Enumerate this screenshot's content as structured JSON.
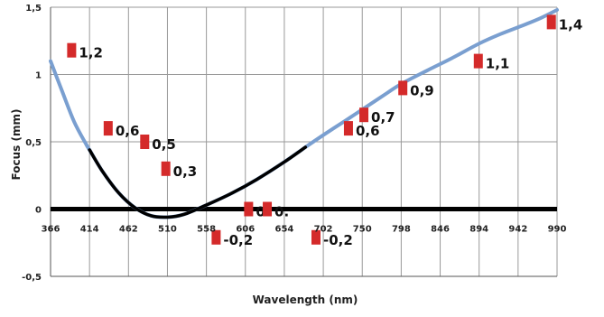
{
  "chart_data": {
    "type": "line",
    "title": "",
    "xlabel": "Wavelength (nm)",
    "ylabel": "Focus (mm)",
    "xlim": [
      366,
      990
    ],
    "ylim": [
      -0.5,
      1.5
    ],
    "x_ticks": [
      {
        "value": 366,
        "label": "366"
      },
      {
        "value": 414,
        "label": "414"
      },
      {
        "value": 462,
        "label": "462"
      },
      {
        "value": 510,
        "label": "510"
      },
      {
        "value": 558,
        "label": "558"
      },
      {
        "value": 606,
        "label": "606"
      },
      {
        "value": 654,
        "label": "654"
      },
      {
        "value": 702,
        "label": "702"
      },
      {
        "value": 750,
        "label": "750"
      },
      {
        "value": 798,
        "label": "798"
      },
      {
        "value": 846,
        "label": "846"
      },
      {
        "value": 894,
        "label": "894"
      },
      {
        "value": 942,
        "label": "942"
      },
      {
        "value": 990,
        "label": "990"
      }
    ],
    "y_ticks": [
      {
        "value": 1.5,
        "label": "1,5"
      },
      {
        "value": 1,
        "label": "1"
      },
      {
        "value": 0.5,
        "label": "0,5"
      },
      {
        "value": 0,
        "label": "0"
      },
      {
        "value": -0.5,
        "label": "-0,5"
      }
    ],
    "grid": true,
    "series": [
      {
        "color": "#7a9fd0",
        "x": [
          366,
          380,
          395,
          410,
          414,
          430,
          450,
          470,
          490,
          510,
          530,
          558,
          590,
          620,
          654,
          680,
          702,
          730,
          750,
          780,
          798,
          830,
          860,
          894,
          920,
          950,
          970,
          990
        ],
        "y": [
          1.1,
          0.88,
          0.65,
          0.48,
          0.44,
          0.28,
          0.12,
          0.01,
          -0.05,
          -0.06,
          -0.04,
          0.03,
          0.12,
          0.22,
          0.35,
          0.46,
          0.55,
          0.66,
          0.74,
          0.86,
          0.93,
          1.03,
          1.12,
          1.23,
          1.3,
          1.37,
          1.42,
          1.48
        ]
      },
      {
        "color": "#000000",
        "x": [
          414,
          430,
          450,
          470,
          490,
          510,
          530,
          558,
          590,
          620,
          654,
          680
        ],
        "y": [
          0.44,
          0.28,
          0.12,
          0.01,
          -0.05,
          -0.06,
          -0.04,
          0.03,
          0.12,
          0.22,
          0.35,
          0.46
        ]
      }
    ],
    "markers": [
      {
        "x": 392,
        "y": 1.18,
        "label": "1,2"
      },
      {
        "x": 437,
        "y": 0.6,
        "label": "0,6"
      },
      {
        "x": 482,
        "y": 0.5,
        "label": "0,5"
      },
      {
        "x": 508,
        "y": 0.3,
        "label": "0,3"
      },
      {
        "x": 570,
        "y": -0.21,
        "label": "-0,2"
      },
      {
        "x": 610,
        "y": 0.0,
        "label": "0"
      },
      {
        "x": 633,
        "y": 0.0,
        "label": "0."
      },
      {
        "x": 693,
        "y": -0.21,
        "label": "-0,2"
      },
      {
        "x": 733,
        "y": 0.6,
        "label": "0,6"
      },
      {
        "x": 752,
        "y": 0.7,
        "label": "0,7"
      },
      {
        "x": 800,
        "y": 0.9,
        "label": "0,9"
      },
      {
        "x": 893,
        "y": 1.1,
        "label": "1,1"
      },
      {
        "x": 983,
        "y": 1.39,
        "label": "1,4"
      }
    ],
    "marker_color": "#d42a2a"
  }
}
